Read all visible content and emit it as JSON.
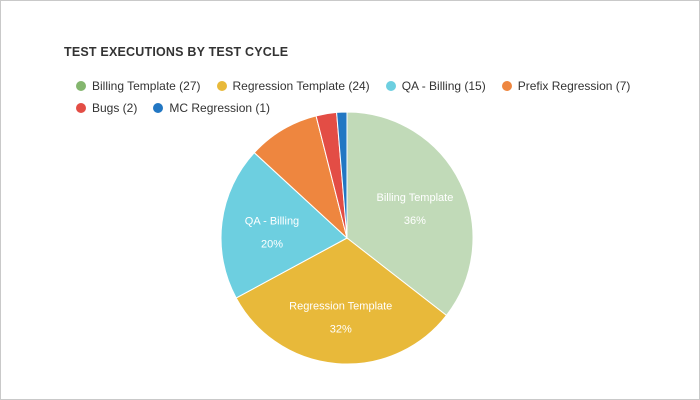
{
  "chart_data": {
    "type": "pie",
    "title": "TEST EXECUTIONS BY TEST CYCLE",
    "slices": [
      {
        "name": "Billing Template",
        "value": 27,
        "legend_label": "Billing Template (27)",
        "label": "Billing Template",
        "percent_label": "36%",
        "color": "#c1dab8"
      },
      {
        "name": "Regression Template",
        "value": 24,
        "legend_label": "Regression Template (24)",
        "label": "Regression Template",
        "percent_label": "32%",
        "color": "#e8b93a"
      },
      {
        "name": "QA - Billing",
        "value": 15,
        "legend_label": "QA - Billing (15)",
        "label": "QA - Billing",
        "percent_label": "20%",
        "color": "#6dcfe0"
      },
      {
        "name": "Prefix Regression",
        "value": 7,
        "legend_label": "Prefix Regression (7)",
        "label": "",
        "percent_label": "",
        "color": "#ee863f"
      },
      {
        "name": "Bugs",
        "value": 2,
        "legend_label": "Bugs (2)",
        "label": "",
        "percent_label": "",
        "color": "#e34d45"
      },
      {
        "name": "MC Regression",
        "value": 1,
        "legend_label": "MC Regression (1)",
        "label": "",
        "percent_label": "",
        "color": "#2277c3"
      }
    ],
    "legend_markers": {
      "Billing Template": "#84b66e"
    },
    "legend_position": "top-left"
  }
}
